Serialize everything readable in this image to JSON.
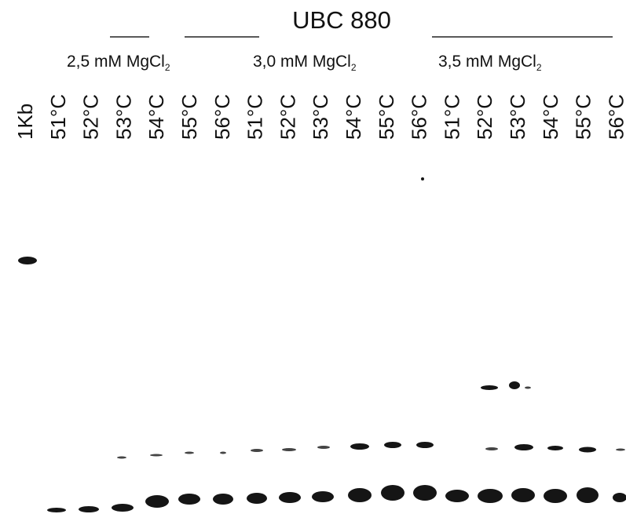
{
  "title": "UBC 880",
  "groups": [
    {
      "label": "2,5 mM MgCl",
      "subscript": "2"
    },
    {
      "label": "3,0 mM MgCl",
      "subscript": "2"
    },
    {
      "label": "3,5 mM MgCl",
      "subscript": "2"
    }
  ],
  "lanes": [
    "1Kb",
    "51°C",
    "52°C",
    "53°C",
    "54°C",
    "55°C",
    "56°C",
    "51°C",
    "52°C",
    "53°C",
    "54°C",
    "55°C",
    "56°C",
    "51°C",
    "52°C",
    "53°C",
    "54°C",
    "55°C",
    "56°C"
  ]
}
